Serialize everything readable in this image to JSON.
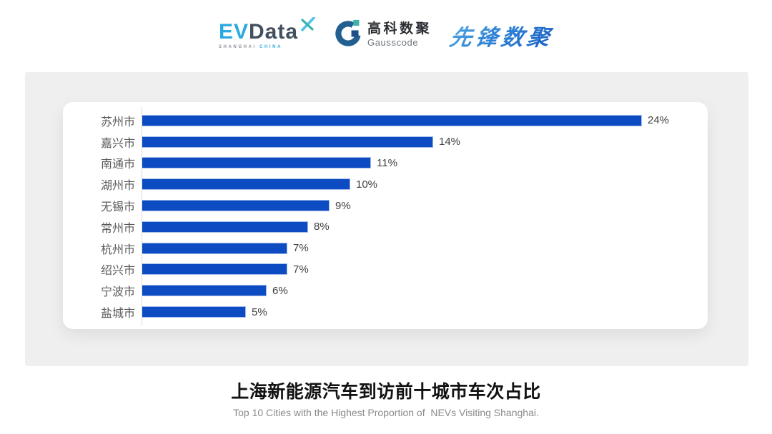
{
  "header": {
    "evdata": {
      "ev": "EV",
      "data": "Data",
      "tagline_left": "SHANGHAI",
      "tagline_right": "CHINA",
      "ev_color": "#2aa9e0",
      "data_color": "#414f5e"
    },
    "gausscode": {
      "name_cn": "高科数聚",
      "name_en": "Gausscode",
      "mark_arc_color": "#215f90",
      "mark_teal_color": "#3fb3a9",
      "mark_navy_color": "#1c4f8a"
    },
    "pioneer": {
      "text": "先锋数聚",
      "color_start": "#55aae2",
      "color_end": "#1a5ec4"
    }
  },
  "chart_data": {
    "type": "bar",
    "orientation": "horizontal",
    "title": "上海新能源汽车到访前十城市车次占比",
    "subtitle": "Top 10 Cities with the Highest Proportion of  NEVs Visiting Shanghai.",
    "categories": [
      "苏州市",
      "嘉兴市",
      "南通市",
      "湖州市",
      "无锡市",
      "常州市",
      "杭州市",
      "绍兴市",
      "宁波市",
      "盐城市"
    ],
    "values": [
      24,
      14,
      11,
      10,
      9,
      8,
      7,
      7,
      6,
      5
    ],
    "unit": "%",
    "data_labels": [
      "24%",
      "14%",
      "11%",
      "10%",
      "9%",
      "8%",
      "7%",
      "7%",
      "6%",
      "5%"
    ],
    "xlim": [
      0,
      24
    ],
    "bar_color": "#0c4bc2",
    "axis_line_color": "#d9d9d9",
    "label_color": "#595959",
    "value_label_color": "#404040",
    "grid": "off",
    "legend": "none",
    "value_label_position": "end-of-bar"
  },
  "footer": {
    "title": "上海新能源汽车到访前十城市车次占比",
    "subtitle": "Top 10 Cities with the Highest Proportion of  NEVs Visiting Shanghai."
  }
}
